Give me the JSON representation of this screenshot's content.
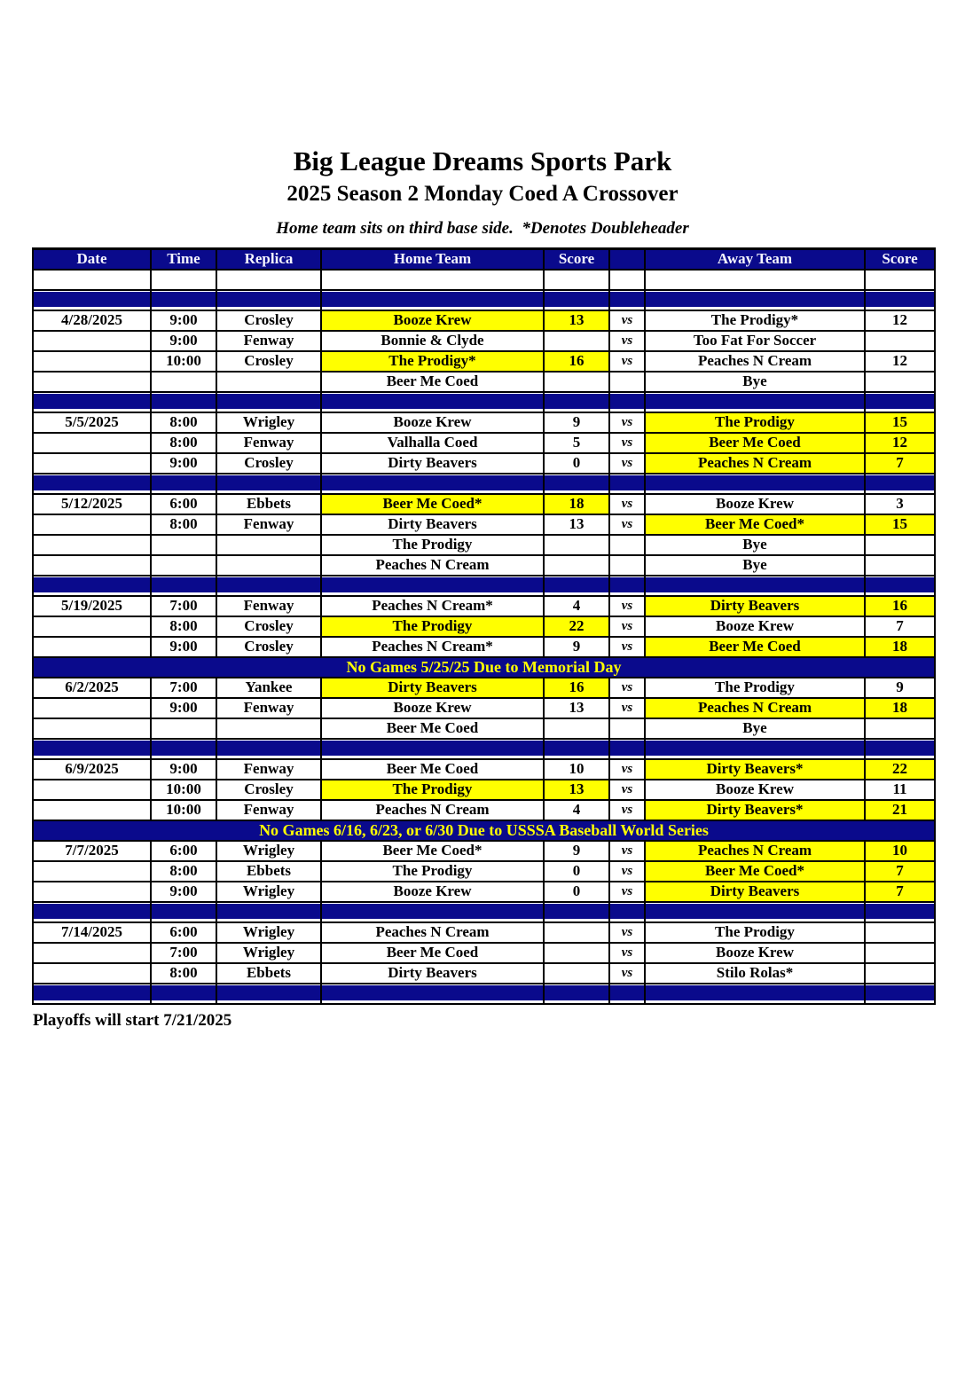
{
  "page": {
    "title": "Big League Dreams Sports Park",
    "subtitle": "2025 Season 2 Monday Coed A Crossover",
    "note": "Home team sits on third base side.  *Denotes Doubleheader",
    "footer": "Playoffs will start 7/21/2025"
  },
  "colors": {
    "navy": "#0A0A8C",
    "highlight_yellow": "#FFFF00",
    "header_text": "#F6F6FF",
    "banner_text": "#FFFF00"
  },
  "table": {
    "headers": [
      "Date",
      "Time",
      "Replica",
      "Home Team",
      "Score",
      "",
      "Away Team",
      "Score"
    ],
    "vs_label": "vs",
    "rows": [
      {
        "type": "blank"
      },
      {
        "type": "separator"
      },
      {
        "type": "game",
        "date": "4/28/2025",
        "time": "9:00",
        "replica": "Crosley",
        "home": "Booze Krew",
        "home_score": "13",
        "home_win": true,
        "vs": true,
        "away": "The Prodigy*",
        "away_score": "12",
        "away_win": false
      },
      {
        "type": "game",
        "date": "",
        "time": "9:00",
        "replica": "Fenway",
        "home": "Bonnie & Clyde",
        "home_score": "",
        "home_win": false,
        "vs": true,
        "away": "Too Fat For Soccer",
        "away_score": "",
        "away_win": false
      },
      {
        "type": "game",
        "date": "",
        "time": "10:00",
        "replica": "Crosley",
        "home": "The Prodigy*",
        "home_score": "16",
        "home_win": true,
        "vs": true,
        "away": "Peaches N Cream",
        "away_score": "12",
        "away_win": false
      },
      {
        "type": "game",
        "date": "",
        "time": "",
        "replica": "",
        "home": "Beer Me Coed",
        "home_score": "",
        "home_win": false,
        "vs": false,
        "away": "Bye",
        "away_score": "",
        "away_win": false
      },
      {
        "type": "separator"
      },
      {
        "type": "game",
        "date": "5/5/2025",
        "time": "8:00",
        "replica": "Wrigley",
        "home": "Booze Krew",
        "home_score": "9",
        "home_win": false,
        "vs": true,
        "away": "The Prodigy",
        "away_score": "15",
        "away_win": true
      },
      {
        "type": "game",
        "date": "",
        "time": "8:00",
        "replica": "Fenway",
        "home": "Valhalla Coed",
        "home_score": "5",
        "home_win": false,
        "vs": true,
        "away": "Beer Me Coed",
        "away_score": "12",
        "away_win": true
      },
      {
        "type": "game",
        "date": "",
        "time": "9:00",
        "replica": "Crosley",
        "home": "Dirty Beavers",
        "home_score": "0",
        "home_win": false,
        "vs": true,
        "away": "Peaches N Cream",
        "away_score": "7",
        "away_win": true
      },
      {
        "type": "separator"
      },
      {
        "type": "game",
        "date": "5/12/2025",
        "time": "6:00",
        "replica": "Ebbets",
        "home": "Beer Me Coed*",
        "home_score": "18",
        "home_win": true,
        "vs": true,
        "away": "Booze Krew",
        "away_score": "3",
        "away_win": false
      },
      {
        "type": "game",
        "date": "",
        "time": "8:00",
        "replica": "Fenway",
        "home": "Dirty Beavers",
        "home_score": "13",
        "home_win": false,
        "vs": true,
        "away": "Beer Me Coed*",
        "away_score": "15",
        "away_win": true
      },
      {
        "type": "game",
        "date": "",
        "time": "",
        "replica": "",
        "home": "The Prodigy",
        "home_score": "",
        "home_win": false,
        "vs": false,
        "away": "Bye",
        "away_score": "",
        "away_win": false
      },
      {
        "type": "game",
        "date": "",
        "time": "",
        "replica": "",
        "home": "Peaches N Cream",
        "home_score": "",
        "home_win": false,
        "vs": false,
        "away": "Bye",
        "away_score": "",
        "away_win": false
      },
      {
        "type": "separator"
      },
      {
        "type": "game",
        "date": "5/19/2025",
        "time": "7:00",
        "replica": "Fenway",
        "home": "Peaches N Cream*",
        "home_score": "4",
        "home_win": false,
        "vs": true,
        "away": "Dirty Beavers",
        "away_score": "16",
        "away_win": true
      },
      {
        "type": "game",
        "date": "",
        "time": "8:00",
        "replica": "Crosley",
        "home": "The Prodigy",
        "home_score": "22",
        "home_win": true,
        "vs": true,
        "away": "Booze Krew",
        "away_score": "7",
        "away_win": false
      },
      {
        "type": "game",
        "date": "",
        "time": "9:00",
        "replica": "Crosley",
        "home": "Peaches N Cream*",
        "home_score": "9",
        "home_win": false,
        "vs": true,
        "away": "Beer Me Coed",
        "away_score": "18",
        "away_win": true
      },
      {
        "type": "banner",
        "text": "No Games 5/25/25 Due to Memorial Day"
      },
      {
        "type": "game",
        "date": "6/2/2025",
        "time": "7:00",
        "replica": "Yankee",
        "home": "Dirty Beavers",
        "home_score": "16",
        "home_win": true,
        "vs": true,
        "away": "The Prodigy",
        "away_score": "9",
        "away_win": false
      },
      {
        "type": "game",
        "date": "",
        "time": "9:00",
        "replica": "Fenway",
        "home": "Booze Krew",
        "home_score": "13",
        "home_win": false,
        "vs": true,
        "away": "Peaches N Cream",
        "away_score": "18",
        "away_win": true
      },
      {
        "type": "game",
        "date": "",
        "time": "",
        "replica": "",
        "home": "Beer Me Coed",
        "home_score": "",
        "home_win": false,
        "vs": false,
        "away": "Bye",
        "away_score": "",
        "away_win": false
      },
      {
        "type": "separator"
      },
      {
        "type": "game",
        "date": "6/9/2025",
        "time": "9:00",
        "replica": "Fenway",
        "home": "Beer Me Coed",
        "home_score": "10",
        "home_win": false,
        "vs": true,
        "away": "Dirty Beavers*",
        "away_score": "22",
        "away_win": true
      },
      {
        "type": "game",
        "date": "",
        "time": "10:00",
        "replica": "Crosley",
        "home": "The Prodigy",
        "home_score": "13",
        "home_win": true,
        "vs": true,
        "away": "Booze Krew",
        "away_score": "11",
        "away_win": false
      },
      {
        "type": "game",
        "date": "",
        "time": "10:00",
        "replica": "Fenway",
        "home": "Peaches N Cream",
        "home_score": "4",
        "home_win": false,
        "vs": true,
        "away": "Dirty Beavers*",
        "away_score": "21",
        "away_win": true
      },
      {
        "type": "banner",
        "text": "No Games 6/16, 6/23, or 6/30 Due to USSSA Baseball World Series"
      },
      {
        "type": "game",
        "date": "7/7/2025",
        "time": "6:00",
        "replica": "Wrigley",
        "home": "Beer Me Coed*",
        "home_score": "9",
        "home_win": false,
        "vs": true,
        "away": "Peaches N Cream",
        "away_score": "10",
        "away_win": true
      },
      {
        "type": "game",
        "date": "",
        "time": "8:00",
        "replica": "Ebbets",
        "home": "The Prodigy",
        "home_score": "0",
        "home_win": false,
        "vs": true,
        "away": "Beer Me Coed*",
        "away_score": "7",
        "away_win": true
      },
      {
        "type": "game",
        "date": "",
        "time": "9:00",
        "replica": "Wrigley",
        "home": "Booze Krew",
        "home_score": "0",
        "home_win": false,
        "vs": true,
        "away": "Dirty Beavers",
        "away_score": "7",
        "away_win": true
      },
      {
        "type": "separator"
      },
      {
        "type": "game",
        "date": "7/14/2025",
        "time": "6:00",
        "replica": "Wrigley",
        "home": "Peaches N Cream",
        "home_score": "",
        "home_win": false,
        "vs": true,
        "away": "The Prodigy",
        "away_score": "",
        "away_win": false
      },
      {
        "type": "game",
        "date": "",
        "time": "7:00",
        "replica": "Wrigley",
        "home": "Beer Me Coed",
        "home_score": "",
        "home_win": false,
        "vs": true,
        "away": "Booze Krew",
        "away_score": "",
        "away_win": false
      },
      {
        "type": "game",
        "date": "",
        "time": "8:00",
        "replica": "Ebbets",
        "home": "Dirty Beavers",
        "home_score": "",
        "home_win": false,
        "vs": true,
        "away": "Stilo Rolas*",
        "away_score": "",
        "away_win": false
      },
      {
        "type": "separator"
      }
    ]
  }
}
